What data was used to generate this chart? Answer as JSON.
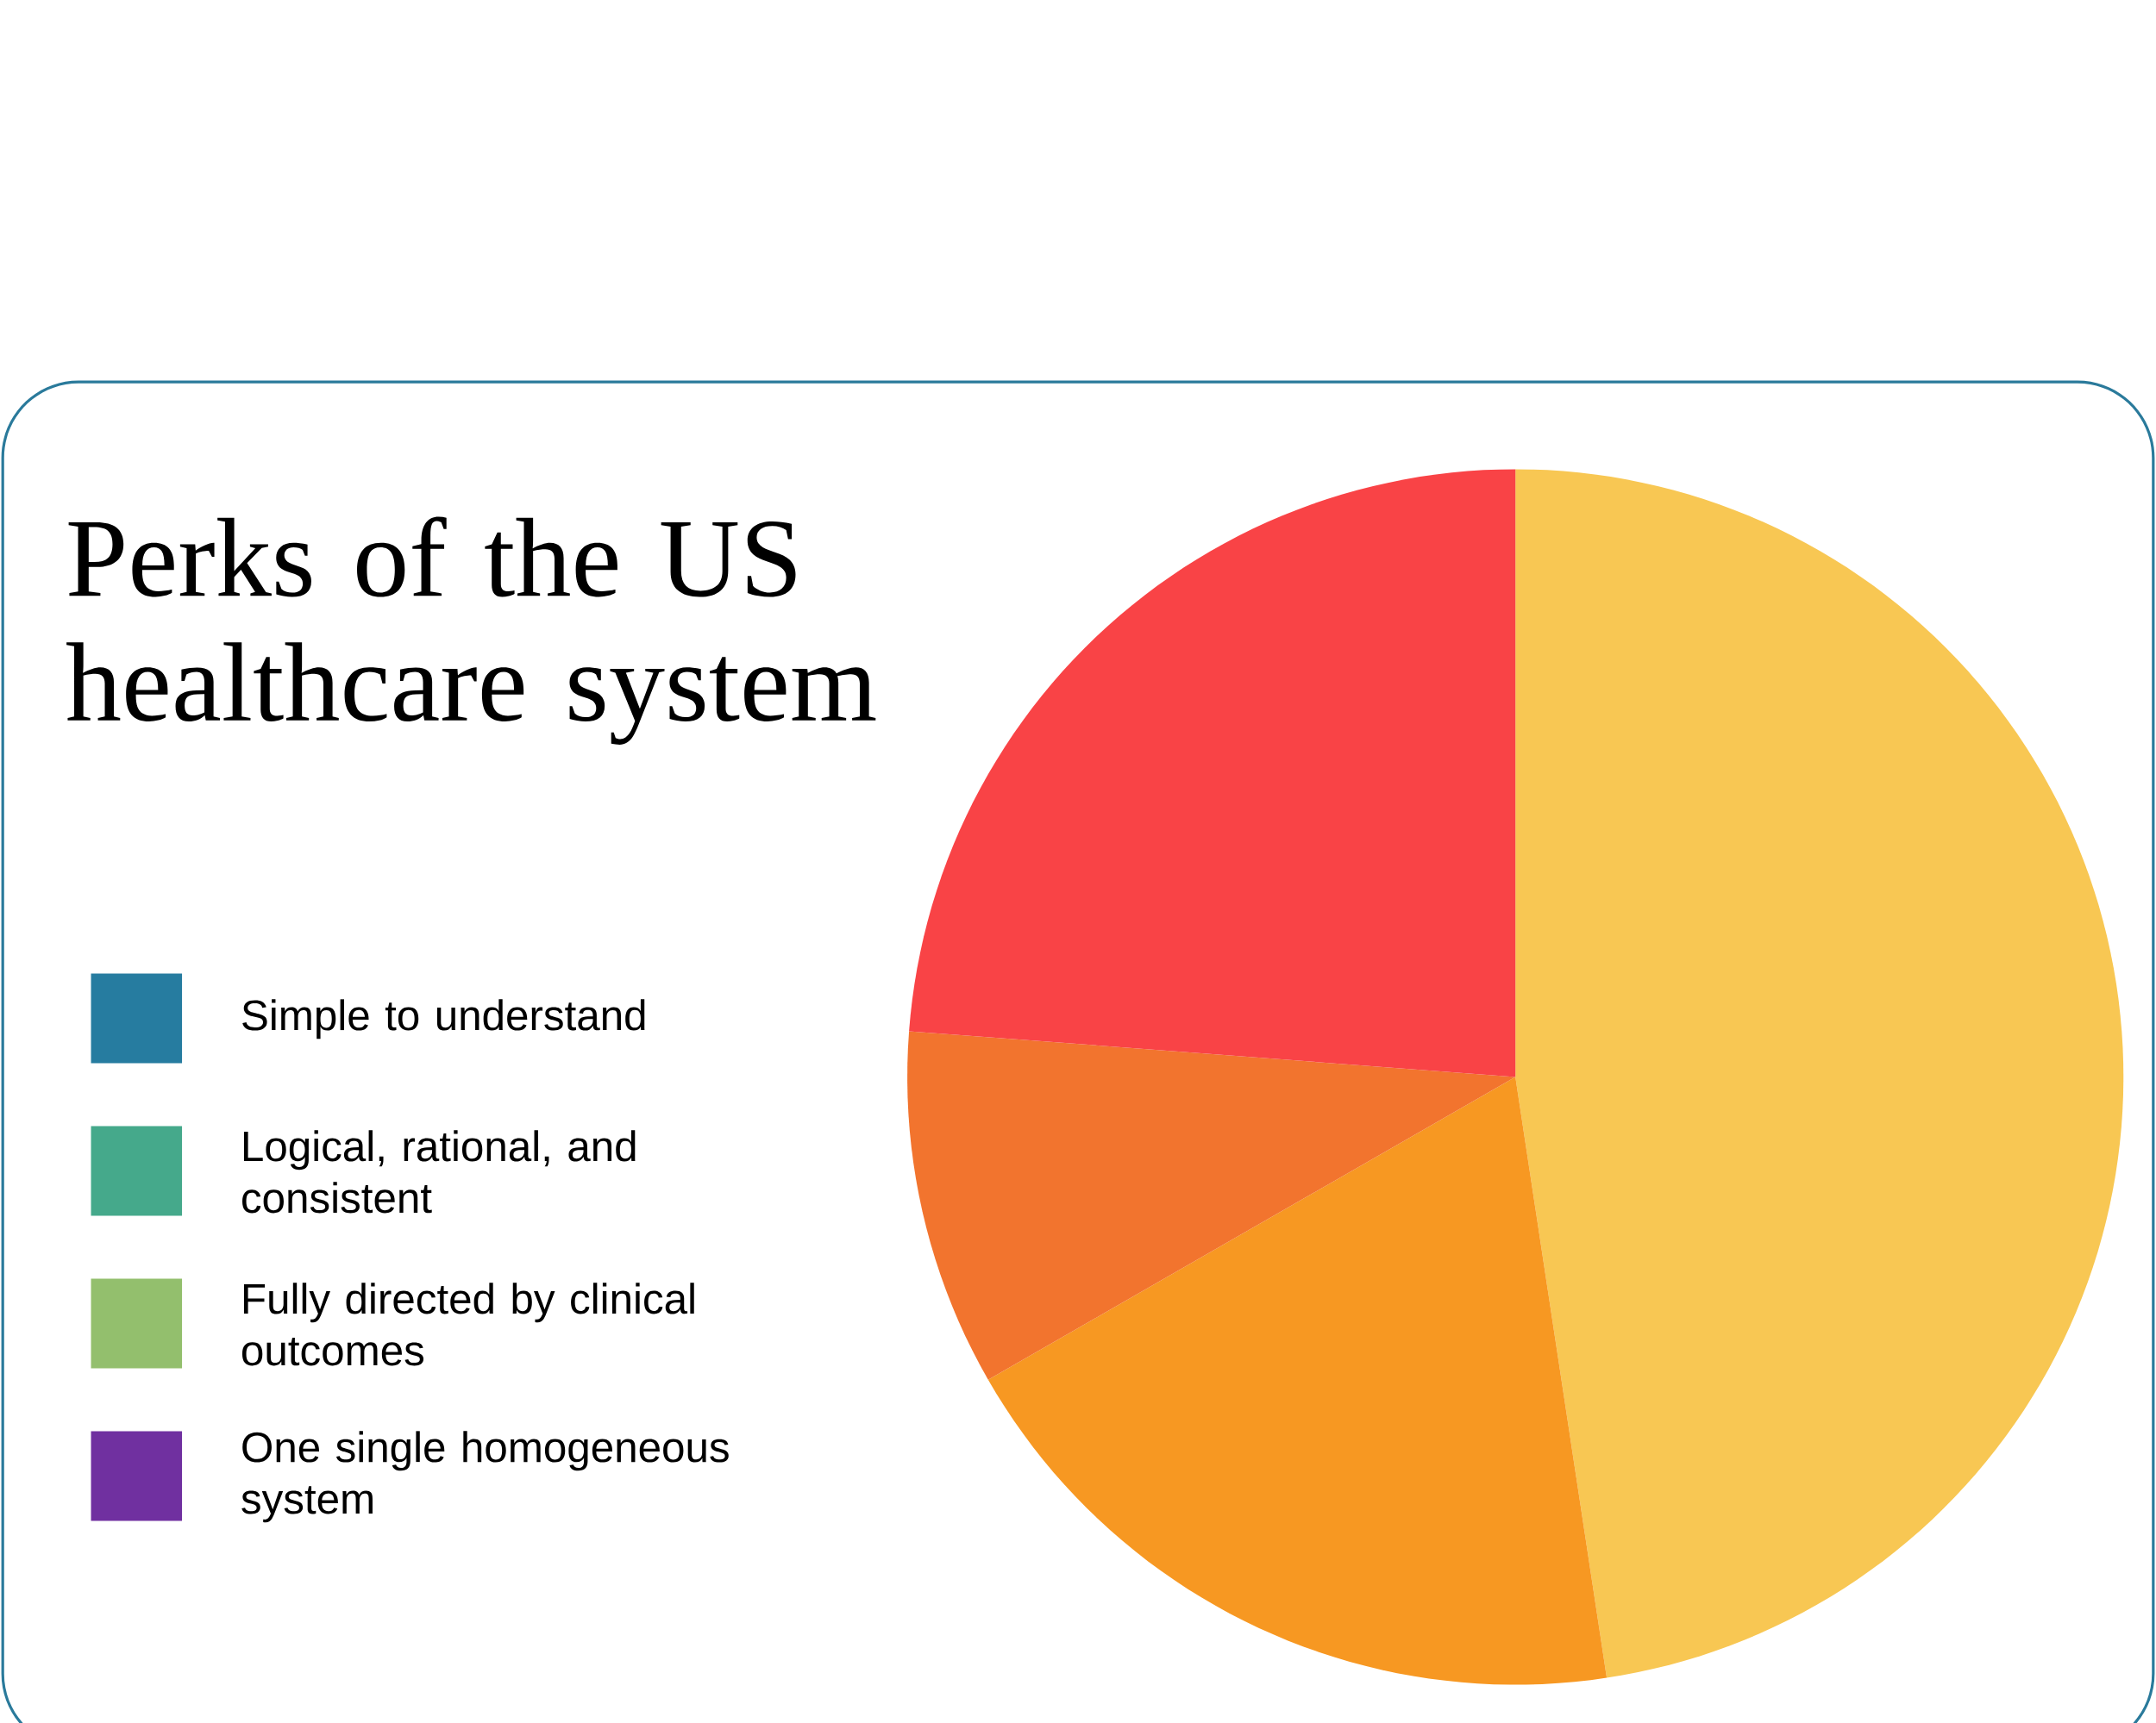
{
  "chart_data": [
    {
      "type": "other",
      "title": "Perks of the US healthcare system",
      "categories": [
        "Simple to understand",
        "Logical, rational, and consistent",
        "Fully directed by clinical outcomes",
        "One single homogeneous system"
      ],
      "colors": [
        "#267ca0",
        "#45a98b",
        "#93bf6d",
        "#7030a0"
      ]
    },
    {
      "type": "pie",
      "categories": [
        null,
        null,
        null,
        null
      ],
      "values": [
        47.6,
        19.1,
        9.5,
        23.8
      ],
      "colors": [
        "#f8c753",
        "#f79822",
        "#f2742e",
        "#f94346"
      ]
    }
  ]
}
